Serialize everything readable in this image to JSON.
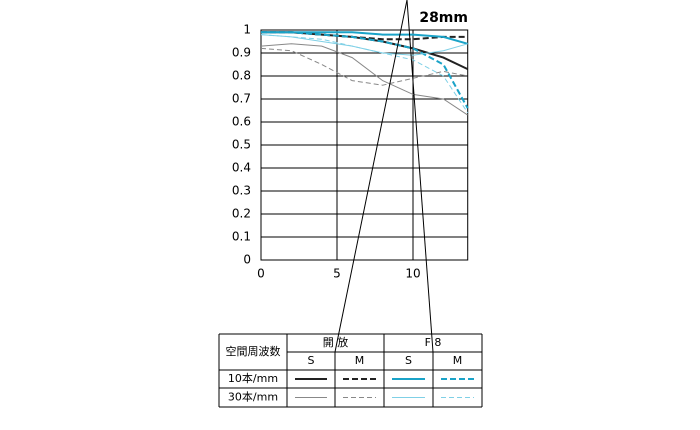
{
  "chart_data": {
    "type": "line",
    "title": "28mm",
    "x": [
      0,
      2,
      4,
      6,
      8,
      10,
      12,
      13.6
    ],
    "xlim": [
      0,
      13.6
    ],
    "xticks": [
      0,
      5,
      10
    ],
    "ylim": [
      0,
      1
    ],
    "yticks": [
      0,
      0.1,
      0.2,
      0.3,
      0.4,
      0.5,
      0.6,
      0.7,
      0.8,
      0.9,
      1
    ],
    "grid": true,
    "series": [
      {
        "color": "#222222",
        "dash": "solid",
        "width": 2,
        "values": [
          0.99,
          0.99,
          0.98,
          0.97,
          0.95,
          0.92,
          0.88,
          0.83
        ]
      },
      {
        "color": "#222222",
        "dash": "dashed",
        "width": 2,
        "values": [
          0.99,
          0.99,
          0.98,
          0.97,
          0.96,
          0.96,
          0.97,
          0.97
        ]
      },
      {
        "color": "#1aa3c8",
        "dash": "solid",
        "width": 2,
        "values": [
          0.99,
          0.99,
          0.99,
          0.99,
          0.98,
          0.98,
          0.97,
          0.94
        ]
      },
      {
        "color": "#1aa3c8",
        "dash": "dashed",
        "width": 2,
        "values": [
          0.99,
          0.99,
          0.98,
          0.97,
          0.95,
          0.92,
          0.85,
          0.66
        ]
      },
      {
        "color": "#888888",
        "dash": "solid",
        "width": 1,
        "values": [
          0.93,
          0.94,
          0.93,
          0.88,
          0.78,
          0.72,
          0.7,
          0.63
        ]
      },
      {
        "color": "#888888",
        "dash": "dashed",
        "width": 1,
        "values": [
          0.92,
          0.91,
          0.85,
          0.78,
          0.76,
          0.79,
          0.82,
          0.8
        ]
      },
      {
        "color": "#7fd0e6",
        "dash": "solid",
        "width": 1,
        "values": [
          0.98,
          0.97,
          0.95,
          0.93,
          0.9,
          0.89,
          0.91,
          0.94
        ]
      },
      {
        "color": "#7fd0e6",
        "dash": "dashed",
        "width": 1,
        "values": [
          0.98,
          0.97,
          0.96,
          0.93,
          0.9,
          0.87,
          0.8,
          0.64
        ]
      }
    ]
  },
  "legend": {
    "corner_label": "空間周波数",
    "groups": [
      "開 放",
      "F 8"
    ],
    "subs": [
      "S",
      "M",
      "S",
      "M"
    ],
    "rows": [
      "10本/mm",
      "30本/mm"
    ]
  }
}
